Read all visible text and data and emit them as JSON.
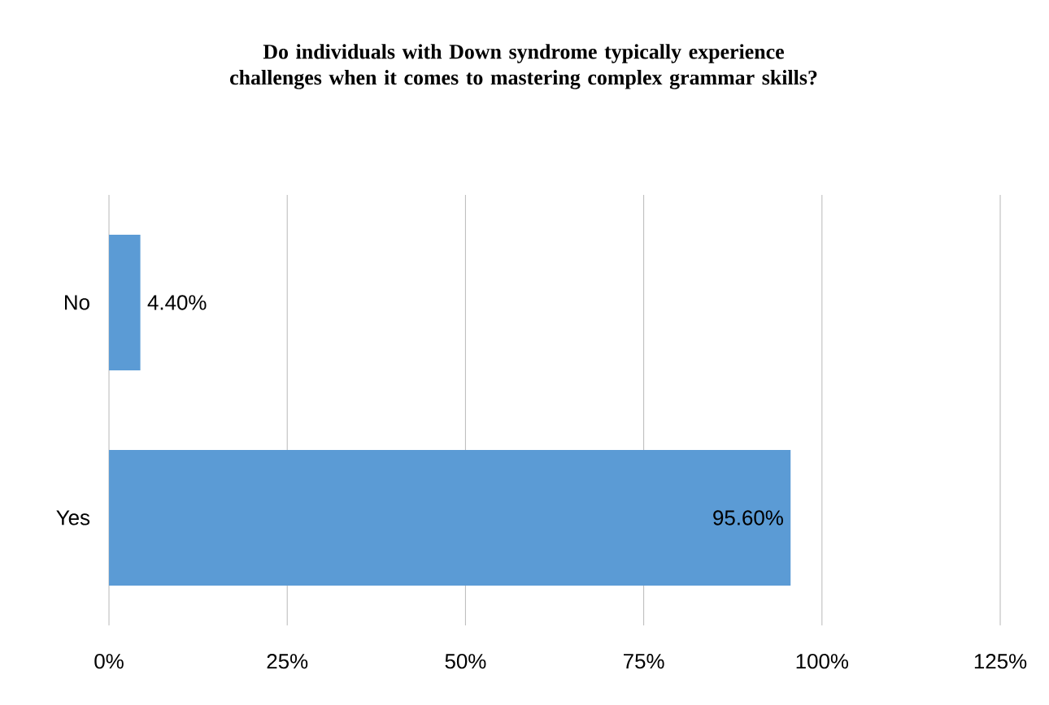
{
  "chart_data": {
    "type": "bar",
    "orientation": "horizontal",
    "title": "Do individuals  with Down syndrome typically experience challenges when it comes to mastering complex grammar skills?",
    "categories": [
      "No",
      "Yes"
    ],
    "values": [
      4.4,
      95.6
    ],
    "value_labels": [
      "4.40%",
      "95.60%"
    ],
    "color": "#5b9bd5",
    "xlim": [
      0,
      125
    ],
    "xticks": [
      {
        "value": 0,
        "label": "0%"
      },
      {
        "value": 25,
        "label": "25%"
      },
      {
        "value": 50,
        "label": "50%"
      },
      {
        "value": 75,
        "label": "75%"
      },
      {
        "value": 100,
        "label": "100%"
      },
      {
        "value": 125,
        "label": "125%"
      }
    ],
    "grid": "x"
  }
}
